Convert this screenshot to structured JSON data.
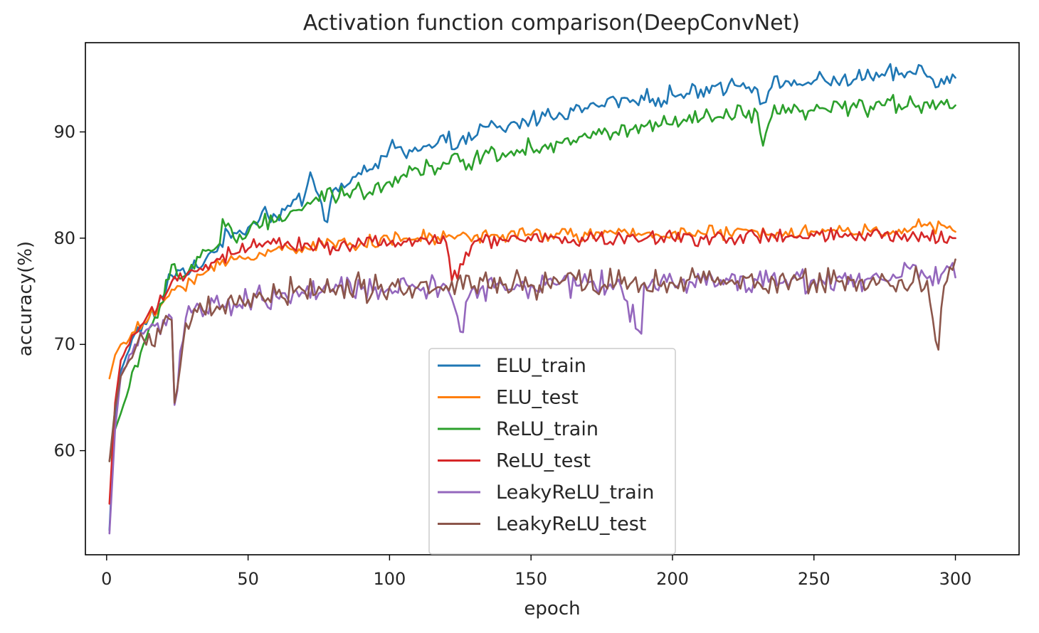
{
  "chart_data": {
    "type": "line",
    "title": "Activation function comparison(DeepConvNet)",
    "xlabel": "epoch",
    "ylabel": "accuracy(%)",
    "xlim": [
      -7.5,
      322.5
    ],
    "ylim": [
      50.2,
      98.4
    ],
    "xticks": [
      0,
      50,
      100,
      150,
      200,
      250,
      300
    ],
    "yticks": [
      60,
      70,
      80,
      90
    ],
    "grid": false,
    "legend_position": "lower center",
    "series": [
      {
        "name": "ELU_train",
        "color": "#1f77b4",
        "x": [
          1,
          3,
          5,
          8,
          10,
          13,
          15,
          18,
          20,
          23,
          25,
          28,
          30,
          35,
          40,
          45,
          50,
          55,
          60,
          65,
          70,
          72,
          75,
          78,
          80,
          85,
          90,
          95,
          100,
          105,
          110,
          115,
          120,
          125,
          130,
          135,
          140,
          145,
          150,
          155,
          160,
          165,
          170,
          175,
          180,
          185,
          190,
          195,
          200,
          205,
          210,
          215,
          220,
          225,
          230,
          233,
          235,
          240,
          245,
          250,
          255,
          260,
          265,
          270,
          275,
          280,
          285,
          288,
          290,
          295,
          300
        ],
        "y": [
          52.5,
          63.5,
          67.5,
          69.5,
          71,
          72,
          72.5,
          73.5,
          74.5,
          76.5,
          77,
          76.5,
          77,
          78,
          79.5,
          80.5,
          81,
          82.5,
          82,
          83,
          84,
          86.2,
          84,
          81.5,
          84.5,
          85,
          86,
          87,
          88.5,
          88,
          88.2,
          88.5,
          89,
          89.2,
          89.5,
          90.5,
          90.2,
          90.8,
          91.2,
          91.5,
          91.8,
          92,
          92.2,
          92.5,
          93,
          92.8,
          93,
          93.2,
          93.5,
          93.6,
          94,
          94.3,
          94.5,
          94.6,
          94,
          92.8,
          94.2,
          94.8,
          94.5,
          94.8,
          94.6,
          95,
          95,
          95.2,
          95.3,
          95.4,
          95.5,
          96.2,
          95.2,
          95,
          95.1
        ]
      },
      {
        "name": "ELU_test",
        "color": "#ff7f0e",
        "x": [
          1,
          3,
          5,
          8,
          10,
          13,
          15,
          18,
          20,
          25,
          30,
          35,
          40,
          45,
          50,
          55,
          60,
          70,
          80,
          90,
          100,
          110,
          120,
          130,
          140,
          150,
          160,
          170,
          180,
          190,
          200,
          210,
          220,
          230,
          240,
          250,
          260,
          270,
          280,
          290,
          300
        ],
        "y": [
          66.8,
          69,
          70,
          70.5,
          71.2,
          72,
          72.5,
          73,
          74,
          75.5,
          76,
          76.8,
          77.5,
          78,
          78.2,
          78.5,
          79,
          79.2,
          79.5,
          79.6,
          79.8,
          80,
          80.1,
          80.2,
          80.3,
          80.3,
          80.4,
          80.3,
          80.4,
          80.4,
          80.5,
          80.5,
          80.4,
          80.6,
          80.6,
          80.6,
          80.7,
          80.6,
          80.8,
          81.2,
          80.6
        ]
      },
      {
        "name": "ReLU_train",
        "color": "#2ca02c",
        "x": [
          1,
          3,
          5,
          8,
          10,
          13,
          15,
          18,
          20,
          23,
          25,
          28,
          30,
          35,
          40,
          41,
          45,
          50,
          55,
          60,
          65,
          70,
          75,
          80,
          85,
          90,
          95,
          100,
          105,
          110,
          115,
          120,
          125,
          130,
          135,
          140,
          145,
          150,
          155,
          160,
          165,
          170,
          175,
          180,
          185,
          190,
          195,
          200,
          205,
          210,
          215,
          220,
          225,
          230,
          232,
          235,
          240,
          245,
          250,
          255,
          260,
          265,
          270,
          275,
          280,
          285,
          290,
          295,
          300
        ],
        "y": [
          59,
          62,
          63.5,
          66,
          68,
          70,
          71.5,
          72.5,
          74,
          77.5,
          76.5,
          76.5,
          77.5,
          78.8,
          79.5,
          81.8,
          80,
          80.5,
          81.2,
          81.6,
          82.5,
          83,
          83.5,
          84,
          84.2,
          84.5,
          85,
          85.3,
          86,
          86.5,
          86.8,
          87,
          87.2,
          87.5,
          88,
          88,
          88.3,
          88.6,
          88.8,
          89,
          89.2,
          89.5,
          89.8,
          90,
          90.2,
          90.5,
          90.5,
          90.7,
          91,
          91.2,
          91.3,
          91.5,
          91.6,
          91.8,
          88.7,
          91.4,
          91.8,
          91.9,
          92,
          92,
          92.2,
          92.3,
          92.4,
          92.5,
          92.6,
          92.7,
          92.8,
          92.9,
          92.5
        ]
      },
      {
        "name": "ReLU_test",
        "color": "#d62728",
        "x": [
          1,
          3,
          5,
          8,
          10,
          13,
          15,
          18,
          20,
          25,
          30,
          35,
          40,
          45,
          50,
          55,
          60,
          65,
          70,
          80,
          90,
          100,
          110,
          120,
          122,
          130,
          140,
          150,
          160,
          170,
          180,
          190,
          200,
          210,
          220,
          230,
          240,
          250,
          260,
          270,
          280,
          290,
          300
        ],
        "y": [
          55,
          64.5,
          68.5,
          70,
          71,
          72,
          73,
          73.5,
          74.2,
          76,
          77,
          77.5,
          78,
          78.5,
          79,
          79.2,
          79.5,
          79.3,
          79.5,
          79.2,
          79.6,
          79.5,
          79.7,
          79.6,
          76,
          79.7,
          79.8,
          79.8,
          80,
          79.9,
          80,
          79.9,
          80,
          80.1,
          80,
          80.1,
          80.1,
          80.2,
          80.1,
          80.2,
          80.2,
          80.2,
          80
        ]
      },
      {
        "name": "LeakyReLU_train",
        "color": "#9467bd",
        "x": [
          1,
          3,
          5,
          8,
          10,
          13,
          15,
          18,
          20,
          23,
          24,
          28,
          30,
          35,
          40,
          45,
          50,
          55,
          60,
          70,
          80,
          90,
          100,
          110,
          120,
          125,
          130,
          140,
          150,
          160,
          170,
          180,
          189,
          190,
          200,
          210,
          220,
          230,
          240,
          250,
          260,
          270,
          280,
          285,
          290,
          300
        ],
        "y": [
          52.2,
          62,
          67,
          69,
          70,
          71,
          71.5,
          72,
          72.3,
          72.5,
          64.3,
          72.5,
          73,
          73.2,
          73.5,
          73.8,
          74,
          74.2,
          74.5,
          74.8,
          75,
          75.2,
          75.3,
          75.3,
          75.5,
          71.2,
          75.4,
          75.6,
          75.6,
          75.7,
          75.8,
          75.8,
          71,
          75.8,
          75.9,
          76,
          76,
          76,
          76.1,
          76.1,
          76.2,
          76.2,
          76.3,
          77.5,
          76.2,
          76.3
        ]
      },
      {
        "name": "LeakyReLU_test",
        "color": "#8c564b",
        "x": [
          1,
          3,
          5,
          8,
          10,
          13,
          15,
          18,
          20,
          23,
          24,
          28,
          30,
          35,
          40,
          45,
          50,
          55,
          60,
          70,
          80,
          90,
          100,
          110,
          120,
          130,
          140,
          150,
          160,
          170,
          180,
          190,
          200,
          210,
          220,
          230,
          240,
          250,
          260,
          270,
          280,
          290,
          294,
          296,
          300
        ],
        "y": [
          59,
          64,
          67,
          68.5,
          69.5,
          70.5,
          71,
          71.5,
          72,
          72.3,
          64.5,
          72,
          72.3,
          72.8,
          73.3,
          73.8,
          74.2,
          74.5,
          74.7,
          75,
          75.2,
          75.3,
          75.4,
          75.4,
          75.5,
          75.5,
          75.6,
          75.6,
          75.7,
          75.7,
          75.7,
          75.8,
          75.8,
          75.8,
          75.9,
          75.9,
          75.9,
          76,
          76,
          75.9,
          76,
          76,
          69.5,
          75.5,
          78
        ]
      }
    ]
  }
}
